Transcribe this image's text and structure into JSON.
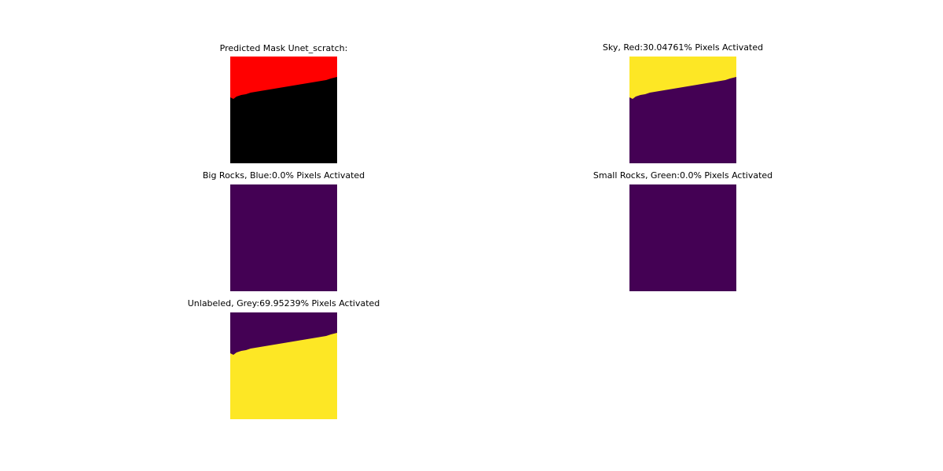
{
  "chart_data": [
    {
      "type": "heatmap",
      "title": "Predicted Mask Unet_scratch:",
      "colormap": "rgb",
      "regions": [
        {
          "label": "Sky",
          "color": "#ff0000"
        },
        {
          "label": "Unlabeled",
          "color": "#000000"
        }
      ]
    },
    {
      "type": "heatmap",
      "title": "Sky, Red:30.04761% Pixels Activated",
      "colormap": "viridis",
      "activated_percent": 30.04761,
      "active_region": "top",
      "colors": {
        "active": "#fde725",
        "inactive": "#440154"
      }
    },
    {
      "type": "heatmap",
      "title": "Big Rocks, Blue:0.0% Pixels Activated",
      "colormap": "viridis",
      "activated_percent": 0.0,
      "active_region": "none",
      "colors": {
        "active": "#fde725",
        "inactive": "#440154"
      }
    },
    {
      "type": "heatmap",
      "title": "Small Rocks, Green:0.0% Pixels Activated",
      "colormap": "viridis",
      "activated_percent": 0.0,
      "active_region": "none",
      "colors": {
        "active": "#fde725",
        "inactive": "#440154"
      }
    },
    {
      "type": "heatmap",
      "title": "Unlabeled, Grey:69.95239% Pixels Activated",
      "colormap": "viridis",
      "activated_percent": 69.95239,
      "active_region": "bottom",
      "colors": {
        "active": "#fde725",
        "inactive": "#440154"
      }
    }
  ]
}
